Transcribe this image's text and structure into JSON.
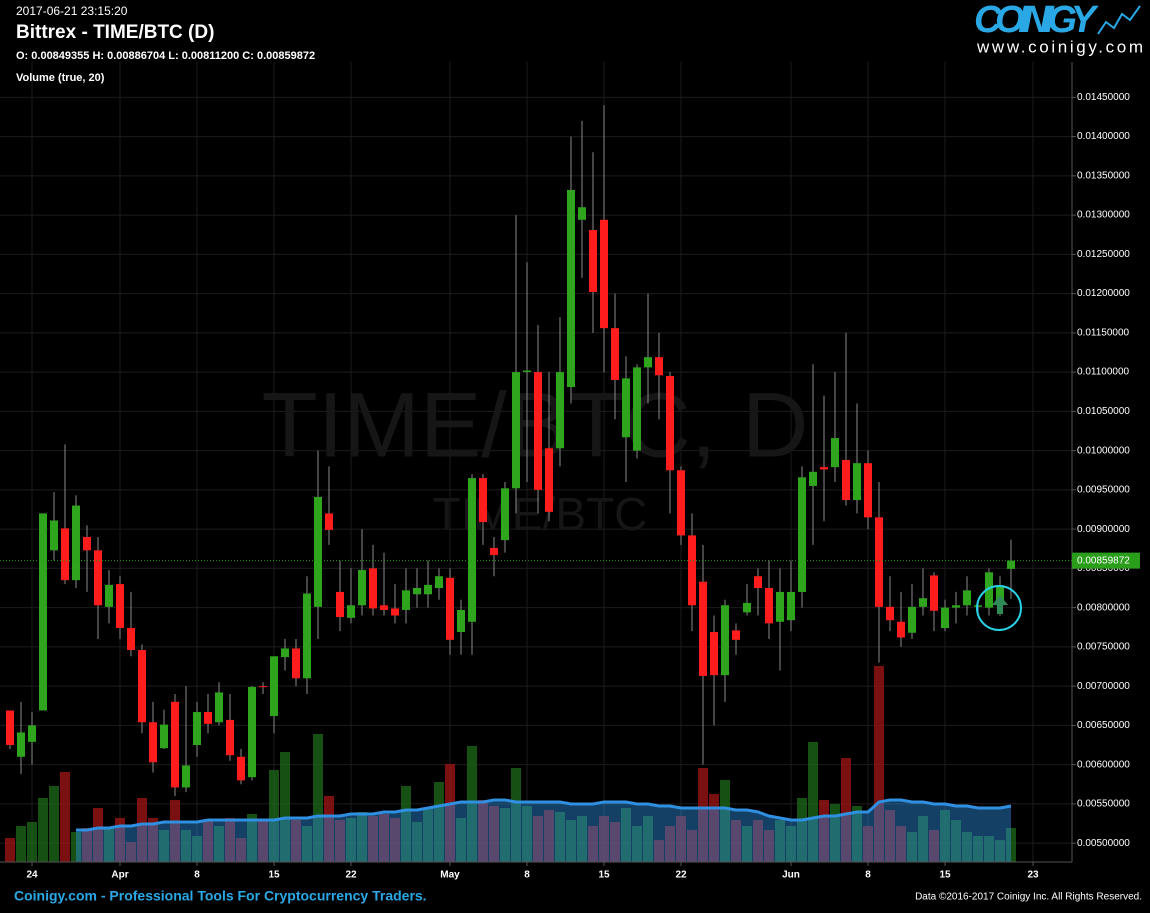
{
  "chart_data": {
    "type": "candlestick",
    "timestamp": "2017-06-21 23:15:20",
    "title": "Bittrex - TIME/BTC (D)",
    "ohlc_text": "O: 0.00849355 H: 0.00886704 L: 0.00811200 C: 0.00859872",
    "watermark": "TIME/BTC, D",
    "watermark_sub": "TIME/BTC",
    "up_color": "#2fa51d",
    "down_color": "#ff1c1c",
    "grid": true,
    "categories": [
      null,
      null,
      "24",
      null,
      null,
      null,
      null,
      null,
      null,
      null,
      "Apr",
      null,
      null,
      null,
      null,
      null,
      null,
      "8",
      null,
      null,
      null,
      null,
      null,
      null,
      "15",
      null,
      null,
      null,
      null,
      null,
      null,
      "22",
      null,
      null,
      null,
      null,
      null,
      null,
      null,
      null,
      "May",
      null,
      null,
      null,
      null,
      null,
      null,
      "8",
      null,
      null,
      null,
      null,
      null,
      null,
      "15",
      null,
      null,
      null,
      null,
      null,
      null,
      "22",
      null,
      null,
      null,
      null,
      null,
      null,
      null,
      null,
      null,
      "Jun",
      null,
      null,
      null,
      null,
      null,
      null,
      "8",
      null,
      null,
      null,
      null,
      null,
      null,
      "15",
      null,
      null,
      null,
      null,
      null,
      null,
      null,
      "23"
    ],
    "open": [
      0.00669,
      0.0061,
      0.00629,
      0.00669,
      0.00873,
      0.00901,
      0.00835,
      0.0089,
      0.00873,
      0.00801,
      0.0083,
      0.00774,
      0.00746,
      0.00654,
      0.00621,
      0.0068,
      0.00571,
      0.00625,
      0.00667,
      0.00654,
      0.00657,
      0.0061,
      0.00584,
      0.007,
      0.00662,
      0.00737,
      0.00748,
      0.0071,
      0.00801,
      0.0092,
      0.0082,
      0.00787,
      0.00803,
      0.0085,
      0.00803,
      0.00799,
      0.00797,
      0.00817,
      0.00817,
      0.00825,
      0.00838,
      0.00769,
      0.00782,
      0.00965,
      0.00876,
      0.00886,
      0.00952,
      0.011,
      0.011,
      0.01003,
      0.01003,
      0.01081,
      0.01294,
      0.01281,
      0.01294,
      0.01156,
      0.01017,
      0.01,
      0.01106,
      0.01119,
      0.01095,
      0.00975,
      0.00892,
      0.00833,
      0.00769,
      0.00714,
      0.00771,
      0.00794,
      0.0084,
      0.00825,
      0.00782,
      0.00784,
      0.0082,
      0.00955,
      0.00979,
      0.00979,
      0.00988,
      0.00937,
      0.00984,
      0.00915,
      0.00801,
      0.00782,
      0.00768,
      0.00801,
      0.00841,
      0.00774,
      0.008,
      0.00803,
      0.00801,
      0.008,
      0.00803,
      0.00849355,
      null,
      null
    ],
    "high": [
      0.00669,
      0.0068,
      0.00667,
      0.0092,
      0.00947,
      0.01008,
      0.00943,
      0.00905,
      0.0089,
      0.00848,
      0.0084,
      0.0082,
      0.00753,
      0.0068,
      0.0067,
      0.0069,
      0.007,
      0.0068,
      0.0069,
      0.00705,
      0.0069,
      0.0062,
      0.007,
      0.00705,
      0.00738,
      0.0076,
      0.0076,
      0.0084,
      0.01,
      0.0098,
      0.0086,
      0.0085,
      0.009,
      0.0088,
      0.0087,
      0.0083,
      0.0085,
      0.0085,
      0.0086,
      0.0085,
      0.0085,
      0.0081,
      0.0097,
      0.0097,
      0.0089,
      0.0096,
      0.013,
      0.0124,
      0.0116,
      0.011,
      0.0117,
      0.014,
      0.0142,
      0.0138,
      0.0144,
      0.012,
      0.0112,
      0.0111,
      0.012,
      0.0115,
      0.011,
      0.0098,
      0.0092,
      0.0088,
      0.0079,
      0.0081,
      0.0078,
      0.0083,
      0.0085,
      0.0086,
      0.0085,
      0.0086,
      0.0098,
      0.0111,
      0.0107,
      0.011,
      0.0115,
      0.0106,
      0.01,
      0.0096,
      0.0084,
      0.0082,
      0.0083,
      0.0085,
      0.00845,
      0.0081,
      0.0082,
      0.0084,
      0.0081,
      0.0085,
      0.0084,
      0.00886704,
      null,
      null
    ],
    "low": [
      0.0062,
      0.00588,
      0.006,
      0.00669,
      0.0086,
      0.0083,
      0.00825,
      0.0082,
      0.0076,
      0.0078,
      0.0076,
      0.00738,
      0.0064,
      0.0059,
      0.0062,
      0.0056,
      0.00565,
      0.0061,
      0.0064,
      0.0065,
      0.00605,
      0.00575,
      0.0058,
      0.0069,
      0.0064,
      0.0072,
      0.007,
      0.0069,
      0.0076,
      0.0088,
      0.0077,
      0.0078,
      0.0079,
      0.0079,
      0.0079,
      0.0078,
      0.0078,
      0.008,
      0.008,
      0.0081,
      0.0074,
      0.0074,
      0.0074,
      0.0088,
      0.0084,
      0.0087,
      0.0092,
      0.0096,
      0.0092,
      0.0091,
      0.0098,
      0.0106,
      0.0122,
      0.0115,
      0.011,
      0.0104,
      0.0096,
      0.0099,
      0.0106,
      0.0104,
      0.0092,
      0.0088,
      0.0077,
      0.006,
      0.0065,
      0.0068,
      0.0074,
      0.0079,
      0.0079,
      0.0076,
      0.0072,
      0.0077,
      0.008,
      0.0088,
      0.0091,
      0.0096,
      0.0093,
      0.0092,
      0.009,
      0.0073,
      0.0077,
      0.0075,
      0.0076,
      0.0079,
      0.0077,
      0.0077,
      0.0078,
      0.0079,
      0.0079,
      0.0079,
      0.0079,
      0.008112,
      null,
      null
    ],
    "close": [
      0.00625,
      0.00641,
      0.0065,
      0.0092,
      0.00911,
      0.00835,
      0.0093,
      0.00873,
      0.00803,
      0.00829,
      0.00774,
      0.00746,
      0.00654,
      0.00603,
      0.00651,
      0.00571,
      0.00599,
      0.00667,
      0.00652,
      0.00692,
      0.00612,
      0.0058,
      0.00699,
      0.00699,
      0.00738,
      0.00748,
      0.0071,
      0.00818,
      0.00941,
      0.00899,
      0.00788,
      0.00803,
      0.00848,
      0.00799,
      0.00797,
      0.0079,
      0.00822,
      0.00825,
      0.00829,
      0.0084,
      0.00759,
      0.00797,
      0.00965,
      0.00909,
      0.00867,
      0.00952,
      0.011,
      0.01102,
      0.0095,
      0.00922,
      0.011,
      0.01332,
      0.0131,
      0.01202,
      0.01156,
      0.0109,
      0.01092,
      0.01106,
      0.01119,
      0.01096,
      0.00975,
      0.00892,
      0.00803,
      0.00713,
      0.00714,
      0.00803,
      0.00759,
      0.00806,
      0.00825,
      0.0078,
      0.0082,
      0.0082,
      0.00966,
      0.00973,
      0.00976,
      0.01016,
      0.00937,
      0.00984,
      0.00915,
      0.00801,
      0.00784,
      0.00762,
      0.00801,
      0.00812,
      0.00796,
      0.008,
      0.00803,
      0.00822,
      0.00803,
      0.00845,
      0.00828,
      0.00859872,
      null,
      null
    ],
    "ylim": [
      0.00476,
      0.01495
    ],
    "yticks": [
      {
        "value": 0.0145,
        "label": "0.01450000"
      },
      {
        "value": 0.014,
        "label": "0.01400000"
      },
      {
        "value": 0.0135,
        "label": "0.01350000"
      },
      {
        "value": 0.013,
        "label": "0.01300000"
      },
      {
        "value": 0.0125,
        "label": "0.01250000"
      },
      {
        "value": 0.012,
        "label": "0.01200000"
      },
      {
        "value": 0.0115,
        "label": "0.01150000"
      },
      {
        "value": 0.011,
        "label": "0.01100000"
      },
      {
        "value": 0.0105,
        "label": "0.01050000"
      },
      {
        "value": 0.01,
        "label": "0.01000000"
      },
      {
        "value": 0.0095,
        "label": "0.00950000"
      },
      {
        "value": 0.009,
        "label": "0.00900000"
      },
      {
        "value": 0.0085,
        "label": "0.00850000"
      },
      {
        "value": 0.008,
        "label": "0.00800000"
      },
      {
        "value": 0.0075,
        "label": "0.00750000"
      },
      {
        "value": 0.007,
        "label": "0.00700000"
      },
      {
        "value": 0.0065,
        "label": "0.00650000"
      },
      {
        "value": 0.006,
        "label": "0.00600000"
      },
      {
        "value": 0.0055,
        "label": "0.00550000"
      },
      {
        "value": 0.005,
        "label": "0.00500000"
      }
    ],
    "last_price": {
      "value": 0.00859872,
      "label": "0.00859872",
      "color": "#2a9d1a"
    },
    "volume": {
      "name": "Volume (true, 20)",
      "lim": [
        0,
        100
      ],
      "up_color": "#1f6b1a",
      "down_color": "#a31515",
      "ma_color": "#2f8fe0",
      "values": [
        12,
        18,
        20,
        32,
        38,
        45,
        15,
        17,
        27,
        17,
        22,
        10,
        32,
        22,
        16,
        31,
        16,
        13,
        21,
        18,
        22,
        12,
        24,
        21,
        46,
        55,
        21,
        18,
        64,
        33,
        21,
        22,
        25,
        23,
        24,
        22,
        38,
        20,
        27,
        40,
        49,
        22,
        58,
        31,
        28,
        27,
        47,
        28,
        23,
        26,
        25,
        21,
        23,
        18,
        23,
        20,
        27,
        18,
        23,
        11,
        18,
        23,
        16,
        47,
        34,
        41,
        21,
        18,
        21,
        16,
        21,
        18,
        32,
        60,
        31,
        29,
        52,
        28,
        18,
        98,
        26,
        18,
        15,
        23,
        16,
        26,
        21,
        15,
        13,
        13,
        11,
        17,
        null,
        null
      ],
      "ma": [
        null,
        null,
        null,
        null,
        null,
        null,
        16,
        16,
        17,
        17,
        18,
        18,
        19,
        19,
        20,
        20,
        20,
        20,
        21,
        21,
        21,
        21,
        21,
        21,
        21,
        22,
        22,
        22,
        23,
        23,
        23,
        24,
        24,
        24,
        25,
        25,
        26,
        26,
        27,
        28,
        29,
        30,
        30,
        30,
        31,
        31,
        30,
        30,
        30,
        30,
        30,
        29,
        29,
        29,
        30,
        30,
        30,
        29,
        29,
        28,
        28,
        27,
        27,
        27,
        27,
        27,
        26,
        26,
        25,
        23,
        22,
        21,
        21,
        22,
        23,
        23,
        24,
        25,
        25,
        30,
        31,
        31,
        30,
        30,
        29,
        29,
        28,
        28,
        27,
        27,
        27,
        28,
        null,
        null
      ]
    }
  },
  "brand": {
    "logo": "COINIGY",
    "url": "www.coinigy.com"
  },
  "footer": {
    "tagline": "Coinigy.com - Professional Tools For Cryptocurrency Traders.",
    "copyright": "Data ©2016-2017 Coinigy Inc. All Rights Reserved."
  }
}
